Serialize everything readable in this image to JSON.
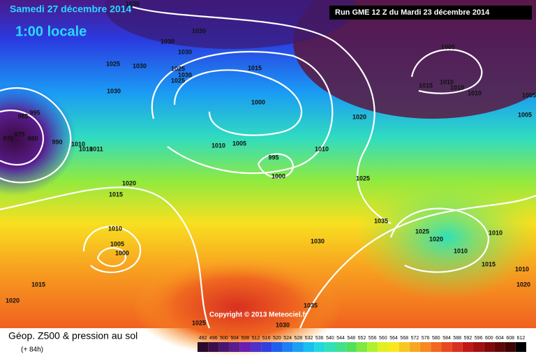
{
  "header": {
    "date": "Samedi 27 décembre 2014",
    "time": "1:00 locale",
    "run": "Run GME 12 Z du Mardi 23 décembre 2014"
  },
  "copyright": "Copyright © 2013 Meteociel.fr",
  "footer": {
    "title": "Géop. Z500 & pression au sol",
    "lead": "(+ 84h)"
  },
  "isobars": [
    "1030",
    "1030",
    "1030",
    "1030",
    "1025",
    "1030",
    "1025",
    "1030",
    "1025",
    "1015",
    "1030",
    "1000",
    "995",
    "985",
    "1005",
    "1015",
    "1010",
    "1010",
    "1010",
    "1005",
    "1005",
    "1020",
    "970",
    "975",
    "980",
    "990",
    "1010",
    "1010",
    "1011",
    "1010",
    "1005",
    "1010",
    "995",
    "1000",
    "1025",
    "1020",
    "1015",
    "1035",
    "1025",
    "1020",
    "1010",
    "1010",
    "1005",
    "1000",
    "1030",
    "1010",
    "1015",
    "1015",
    "1010",
    "1020",
    "1020",
    "1035",
    "1025",
    "1030"
  ],
  "colorbar": {
    "labels": [
      492,
      496,
      500,
      504,
      508,
      512,
      516,
      520,
      524,
      528,
      532,
      536,
      540,
      544,
      548,
      552,
      556,
      560,
      564,
      568,
      572,
      576,
      580,
      584,
      588,
      592,
      596,
      600,
      604,
      608,
      612
    ],
    "colors": [
      "#2a0a2a",
      "#3d0f4a",
      "#4b1670",
      "#5a1d8e",
      "#6a1fb0",
      "#5030c8",
      "#3040e0",
      "#1f5ff0",
      "#1b80f5",
      "#1aa0f5",
      "#18c0f0",
      "#20d8e0",
      "#30e0b8",
      "#40e090",
      "#50e060",
      "#80e840",
      "#b0f030",
      "#e0f020",
      "#f8e820",
      "#f8c820",
      "#f8a820",
      "#f88820",
      "#f06820",
      "#e84820",
      "#d83020",
      "#c01818",
      "#a01010",
      "#800a0a",
      "#600808",
      "#400404",
      "#000000"
    ]
  }
}
